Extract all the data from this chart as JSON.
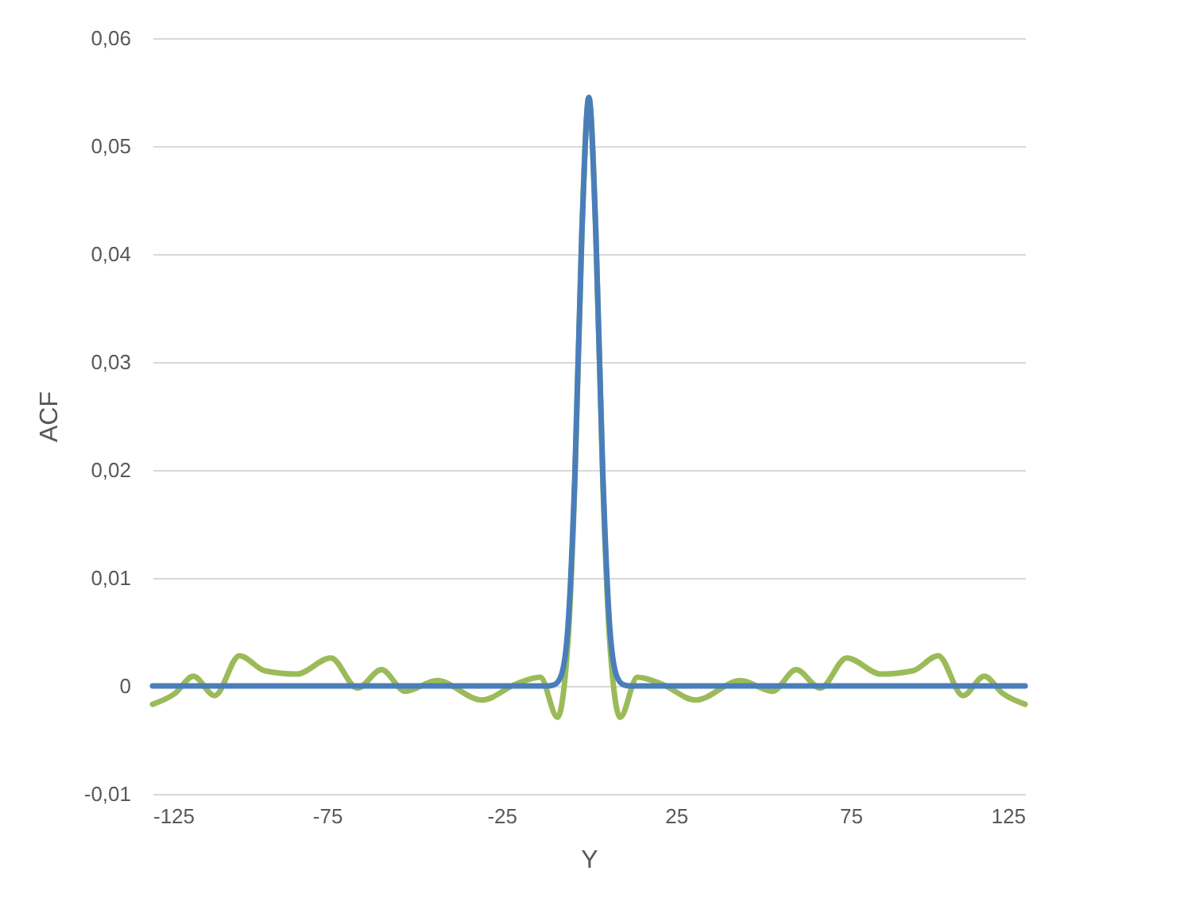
{
  "chart_data": {
    "type": "line",
    "xlabel": "Y",
    "ylabel": "ACF",
    "xlim": [
      -125,
      125
    ],
    "ylim": [
      -0.01,
      0.06
    ],
    "xticks": [
      -125,
      -75,
      -25,
      25,
      75,
      125
    ],
    "yticks": [
      {
        "value": -0.01,
        "label": "-0,01"
      },
      0,
      {
        "value": 0.01,
        "label": "0,01"
      },
      {
        "value": 0.02,
        "label": "0,02"
      },
      {
        "value": 0.03,
        "label": "0,03"
      },
      {
        "value": 0.04,
        "label": "0,04"
      },
      {
        "value": 0.05,
        "label": "0,05"
      },
      {
        "value": 0.06,
        "label": "0,06"
      }
    ],
    "grid": "y",
    "marker": "none",
    "line_style": "solid",
    "series": [
      {
        "color": "#9bbb59",
        "x": [
          -125,
          -118.6,
          -113.3,
          -107.2,
          -100.1,
          -92.8,
          -83.7,
          -73.9,
          -66.3,
          -59.4,
          -52.6,
          -43.5,
          -30.6,
          -20.7,
          -13.9,
          -9,
          -6,
          -4,
          -2,
          0,
          2,
          4,
          6,
          9,
          13.9,
          20.7,
          30.6,
          43.5,
          52.6,
          59.4,
          66.3,
          73.9,
          83.7,
          92.8,
          100.1,
          107.2,
          113.3,
          118.6,
          125
        ],
        "values": [
          -0.0017,
          -0.0007,
          0.0009,
          -0.0009,
          0.0028,
          0.0014,
          0.0011,
          0.0026,
          -0.0002,
          0.0015,
          -0.0005,
          0.0005,
          -0.0013,
          0.0002,
          0.0008,
          -0.0029,
          0.004,
          0.019,
          0.042,
          0.0545,
          0.042,
          0.019,
          0.004,
          -0.0029,
          0.0008,
          0.0002,
          -0.0013,
          0.0005,
          -0.0005,
          0.0015,
          -0.0002,
          0.0026,
          0.0011,
          0.0014,
          0.0028,
          -0.0009,
          0.0009,
          -0.0007,
          -0.0017
        ]
      },
      {
        "color": "#4a7ebb",
        "x": [
          -125,
          -12,
          -10,
          -8,
          -6,
          -4,
          -2,
          0,
          2,
          4,
          6,
          8,
          10,
          12,
          125
        ],
        "values": [
          0,
          0,
          0.0001,
          0.0009,
          0.0054,
          0.0196,
          0.042,
          0.0545,
          0.042,
          0.0196,
          0.0054,
          0.0009,
          0.0001,
          0,
          0
        ]
      }
    ]
  }
}
